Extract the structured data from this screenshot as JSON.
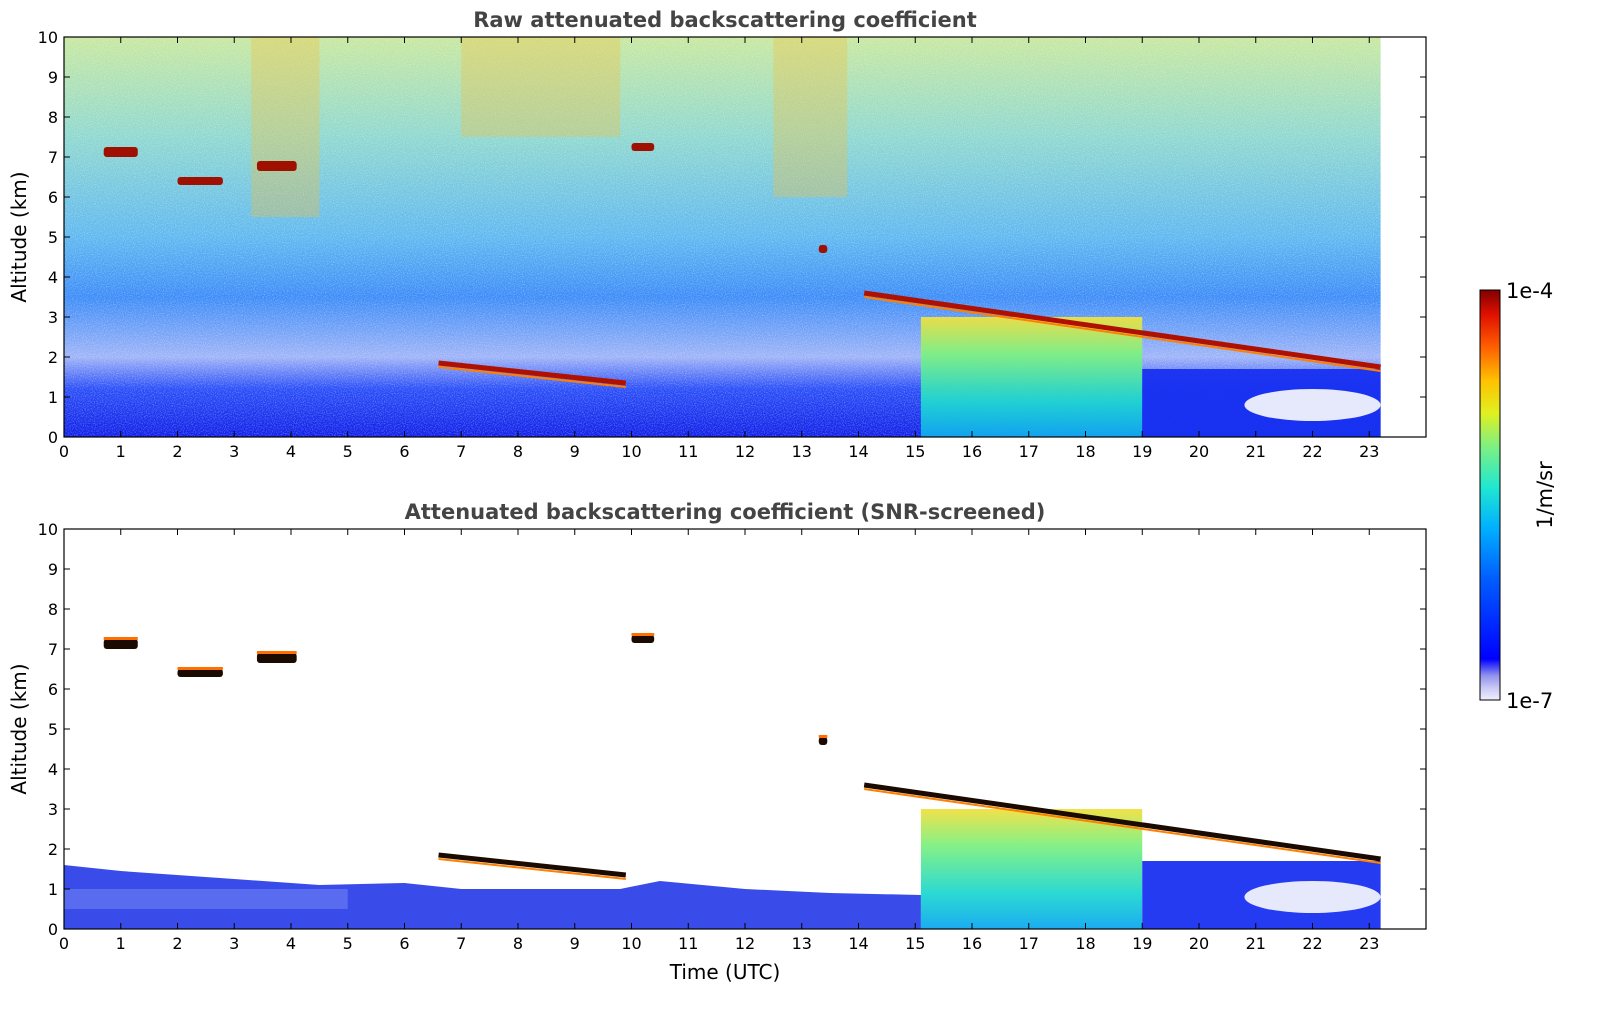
{
  "chart_data": [
    {
      "type": "heatmap",
      "title": "Raw attenuated backscattering coefficient",
      "xlabel": "",
      "ylabel": "Altitude (km)",
      "xlim": [
        0,
        24
      ],
      "ylim": [
        0,
        10
      ],
      "x_ticks": [
        0,
        1,
        2,
        3,
        4,
        5,
        6,
        7,
        8,
        9,
        10,
        11,
        12,
        13,
        14,
        15,
        16,
        17,
        18,
        19,
        20,
        21,
        22,
        23
      ],
      "y_ticks": [
        0,
        1,
        2,
        3,
        4,
        5,
        6,
        7,
        8,
        9,
        10
      ],
      "data_end_time": 23.2,
      "color_scale": "log",
      "features": [
        {
          "kind": "cloud",
          "t": [
            0.7,
            1.3
          ],
          "alt": [
            7.0,
            7.25
          ]
        },
        {
          "kind": "cloud",
          "t": [
            2.0,
            2.8
          ],
          "alt": [
            6.3,
            6.5
          ]
        },
        {
          "kind": "cloud",
          "t": [
            3.4,
            4.1
          ],
          "alt": [
            6.65,
            6.9
          ]
        },
        {
          "kind": "cloud",
          "t": [
            10.0,
            10.4
          ],
          "alt": [
            7.15,
            7.35
          ]
        },
        {
          "kind": "cloud",
          "t": [
            13.3,
            13.45
          ],
          "alt": [
            4.6,
            4.8
          ]
        },
        {
          "kind": "boundary_layer_top",
          "t": [
            6.6,
            9.9
          ],
          "alt_start": 1.85,
          "alt_end": 1.35
        },
        {
          "kind": "cloud_base",
          "t": [
            14.1,
            23.2
          ],
          "alt_start": 3.6,
          "alt_end": 1.75
        },
        {
          "kind": "precipitation",
          "t": [
            15.1,
            19.0
          ],
          "alt": [
            0,
            3.0
          ]
        }
      ]
    },
    {
      "type": "heatmap",
      "title": "Attenuated backscattering coefficient (SNR-screened)",
      "xlabel": "Time (UTC)",
      "ylabel": "Altitude (km)",
      "xlim": [
        0,
        24
      ],
      "ylim": [
        0,
        10
      ],
      "x_ticks": [
        0,
        1,
        2,
        3,
        4,
        5,
        6,
        7,
        8,
        9,
        10,
        11,
        12,
        13,
        14,
        15,
        16,
        17,
        18,
        19,
        20,
        21,
        22,
        23
      ],
      "y_ticks": [
        0,
        1,
        2,
        3,
        4,
        5,
        6,
        7,
        8,
        9,
        10
      ],
      "data_end_time": 23.2,
      "color_scale": "log"
    }
  ],
  "colorbar": {
    "max_label": "1e-4",
    "min_label": "1e-7",
    "unit_label": "1/m/sr",
    "colormap": [
      "#f0f0ff",
      "#c8c8f4",
      "#9090ee",
      "#0000ff",
      "#0060ff",
      "#00b0ff",
      "#20e8d0",
      "#80f080",
      "#e0f020",
      "#ffc000",
      "#ff6000",
      "#e01000",
      "#800000"
    ]
  }
}
